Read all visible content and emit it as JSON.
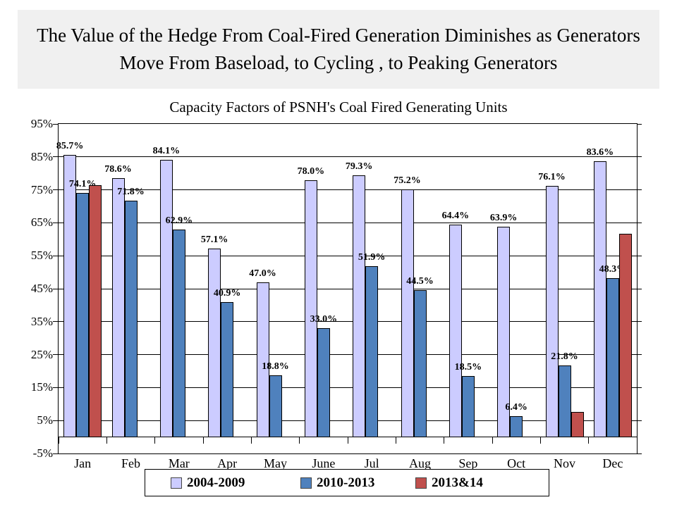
{
  "page": {
    "title_line1": "The Value of the Hedge From Coal-Fired Generation Diminishes as Generators",
    "title_line2": "Move From Baseload, to Cycling , to Peaking Generators"
  },
  "chart_data": {
    "type": "bar",
    "title": "Capacity Factors of PSNH's Coal Fired Generating Units",
    "categories": [
      "Jan",
      "Feb",
      "Mar",
      "Apr",
      "May",
      "June",
      "Jul",
      "Aug",
      "Sep",
      "Oct",
      "Nov",
      "Dec"
    ],
    "series": [
      {
        "name": "2004-2009",
        "color": "#CCCCFF",
        "show_labels": true,
        "values": [
          85.7,
          78.6,
          84.1,
          57.1,
          47.0,
          78.0,
          79.3,
          75.2,
          64.4,
          63.9,
          76.1,
          83.6
        ],
        "labels": [
          "85.7%",
          "78.6%",
          "84.1%",
          "57.1%",
          "47.0%",
          "78.0%",
          "79.3%",
          "75.2%",
          "64.4%",
          "63.9%",
          "76.1%",
          "83.6%"
        ]
      },
      {
        "name": "2010-2013",
        "color": "#4F81BD",
        "show_labels": true,
        "values": [
          74.1,
          71.8,
          62.9,
          40.9,
          18.8,
          33.0,
          51.9,
          44.5,
          18.5,
          6.4,
          21.8,
          48.3
        ],
        "labels": [
          "74.1%",
          "71.8%",
          "62.9%",
          "40.9%",
          "18.8%",
          "33.0%",
          "51.9%",
          "44.5%",
          "18.5%",
          "6.4%",
          "21.8%",
          "48.3%"
        ]
      },
      {
        "name": "2013&14",
        "color": "#C0504D",
        "show_labels": false,
        "values": [
          76.5,
          null,
          null,
          null,
          null,
          null,
          null,
          null,
          null,
          null,
          7.7,
          61.7
        ],
        "labels": [
          "",
          "",
          "",
          "",
          "",
          "",
          "",
          "",
          "",
          "",
          "",
          ""
        ]
      }
    ],
    "ylim": [
      -5,
      95
    ],
    "ytick_labels": [
      "95%",
      "85%",
      "75%",
      "65%",
      "55%",
      "45%",
      "35%",
      "25%",
      "15%",
      "5%",
      "-5%"
    ],
    "grid": true,
    "legend_position": "bottom"
  }
}
